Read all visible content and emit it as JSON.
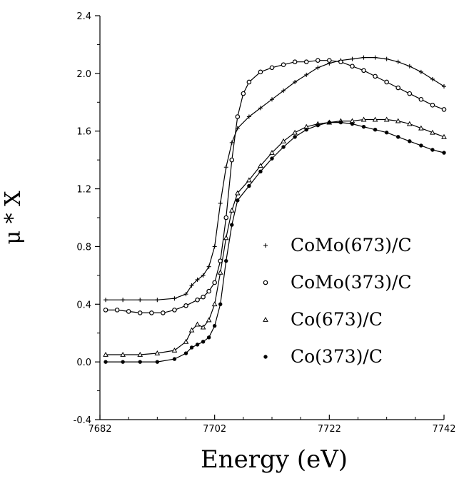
{
  "chart_data": {
    "type": "line",
    "xlabel": "Energy (eV)",
    "ylabel": "μ * X",
    "xlim": [
      7682,
      7742
    ],
    "ylim": [
      -0.4,
      2.4
    ],
    "x_ticks": [
      7682,
      7702,
      7722,
      7742
    ],
    "y_ticks": [
      -0.4,
      0.0,
      0.4,
      0.8,
      1.2,
      1.6,
      2.0,
      2.4
    ],
    "y_tick_labels": [
      "-0.4",
      "0.0",
      "0.4",
      "0.8",
      "1.2",
      "1.6",
      "2.0",
      "2.4"
    ],
    "grid": false,
    "legend_position": "right",
    "series": [
      {
        "name": "CoMo(673)/C",
        "marker": "plus",
        "points": [
          [
            7683,
            0.43
          ],
          [
            7686,
            0.43
          ],
          [
            7689,
            0.43
          ],
          [
            7692,
            0.43
          ],
          [
            7695,
            0.44
          ],
          [
            7697,
            0.47
          ],
          [
            7698,
            0.53
          ],
          [
            7699,
            0.57
          ],
          [
            7700,
            0.6
          ],
          [
            7701,
            0.66
          ],
          [
            7702,
            0.8
          ],
          [
            7703,
            1.1
          ],
          [
            7704,
            1.35
          ],
          [
            7705,
            1.52
          ],
          [
            7706,
            1.62
          ],
          [
            7708,
            1.7
          ],
          [
            7710,
            1.76
          ],
          [
            7712,
            1.82
          ],
          [
            7714,
            1.88
          ],
          [
            7716,
            1.94
          ],
          [
            7718,
            1.99
          ],
          [
            7720,
            2.04
          ],
          [
            7722,
            2.07
          ],
          [
            7724,
            2.09
          ],
          [
            7726,
            2.1
          ],
          [
            7728,
            2.11
          ],
          [
            7730,
            2.11
          ],
          [
            7732,
            2.1
          ],
          [
            7734,
            2.08
          ],
          [
            7736,
            2.05
          ],
          [
            7738,
            2.01
          ],
          [
            7740,
            1.96
          ],
          [
            7742,
            1.91
          ]
        ]
      },
      {
        "name": "CoMo(373)/C",
        "marker": "circle",
        "points": [
          [
            7683,
            0.36
          ],
          [
            7685,
            0.36
          ],
          [
            7687,
            0.35
          ],
          [
            7689,
            0.34
          ],
          [
            7691,
            0.34
          ],
          [
            7693,
            0.34
          ],
          [
            7695,
            0.36
          ],
          [
            7697,
            0.39
          ],
          [
            7699,
            0.43
          ],
          [
            7700,
            0.45
          ],
          [
            7701,
            0.49
          ],
          [
            7702,
            0.55
          ],
          [
            7703,
            0.7
          ],
          [
            7704,
            1.0
          ],
          [
            7705,
            1.4
          ],
          [
            7706,
            1.7
          ],
          [
            7707,
            1.86
          ],
          [
            7708,
            1.94
          ],
          [
            7710,
            2.01
          ],
          [
            7712,
            2.04
          ],
          [
            7714,
            2.06
          ],
          [
            7716,
            2.08
          ],
          [
            7718,
            2.08
          ],
          [
            7720,
            2.09
          ],
          [
            7722,
            2.09
          ],
          [
            7724,
            2.08
          ],
          [
            7726,
            2.05
          ],
          [
            7728,
            2.02
          ],
          [
            7730,
            1.98
          ],
          [
            7732,
            1.94
          ],
          [
            7734,
            1.9
          ],
          [
            7736,
            1.86
          ],
          [
            7738,
            1.82
          ],
          [
            7740,
            1.78
          ],
          [
            7742,
            1.75
          ]
        ]
      },
      {
        "name": "Co(673)/C",
        "marker": "triangle",
        "points": [
          [
            7683,
            0.05
          ],
          [
            7686,
            0.05
          ],
          [
            7689,
            0.05
          ],
          [
            7692,
            0.06
          ],
          [
            7695,
            0.08
          ],
          [
            7697,
            0.14
          ],
          [
            7698,
            0.22
          ],
          [
            7699,
            0.26
          ],
          [
            7700,
            0.24
          ],
          [
            7701,
            0.29
          ],
          [
            7702,
            0.4
          ],
          [
            7703,
            0.62
          ],
          [
            7704,
            0.86
          ],
          [
            7705,
            1.05
          ],
          [
            7706,
            1.17
          ],
          [
            7708,
            1.26
          ],
          [
            7710,
            1.36
          ],
          [
            7712,
            1.45
          ],
          [
            7714,
            1.53
          ],
          [
            7716,
            1.59
          ],
          [
            7718,
            1.63
          ],
          [
            7720,
            1.65
          ],
          [
            7722,
            1.66
          ],
          [
            7724,
            1.67
          ],
          [
            7726,
            1.67
          ],
          [
            7728,
            1.68
          ],
          [
            7730,
            1.68
          ],
          [
            7732,
            1.68
          ],
          [
            7734,
            1.67
          ],
          [
            7736,
            1.65
          ],
          [
            7738,
            1.62
          ],
          [
            7740,
            1.59
          ],
          [
            7742,
            1.56
          ]
        ]
      },
      {
        "name": "Co(373)/C",
        "marker": "dot",
        "points": [
          [
            7683,
            0.0
          ],
          [
            7686,
            0.0
          ],
          [
            7689,
            0.0
          ],
          [
            7692,
            0.0
          ],
          [
            7695,
            0.02
          ],
          [
            7697,
            0.06
          ],
          [
            7698,
            0.1
          ],
          [
            7699,
            0.12
          ],
          [
            7700,
            0.14
          ],
          [
            7701,
            0.17
          ],
          [
            7702,
            0.25
          ],
          [
            7703,
            0.4
          ],
          [
            7704,
            0.7
          ],
          [
            7705,
            0.95
          ],
          [
            7706,
            1.12
          ],
          [
            7708,
            1.22
          ],
          [
            7710,
            1.32
          ],
          [
            7712,
            1.41
          ],
          [
            7714,
            1.49
          ],
          [
            7716,
            1.56
          ],
          [
            7718,
            1.61
          ],
          [
            7720,
            1.64
          ],
          [
            7722,
            1.66
          ],
          [
            7724,
            1.66
          ],
          [
            7726,
            1.65
          ],
          [
            7728,
            1.63
          ],
          [
            7730,
            1.61
          ],
          [
            7732,
            1.59
          ],
          [
            7734,
            1.56
          ],
          [
            7736,
            1.53
          ],
          [
            7738,
            1.5
          ],
          [
            7740,
            1.47
          ],
          [
            7742,
            1.45
          ]
        ]
      }
    ]
  }
}
